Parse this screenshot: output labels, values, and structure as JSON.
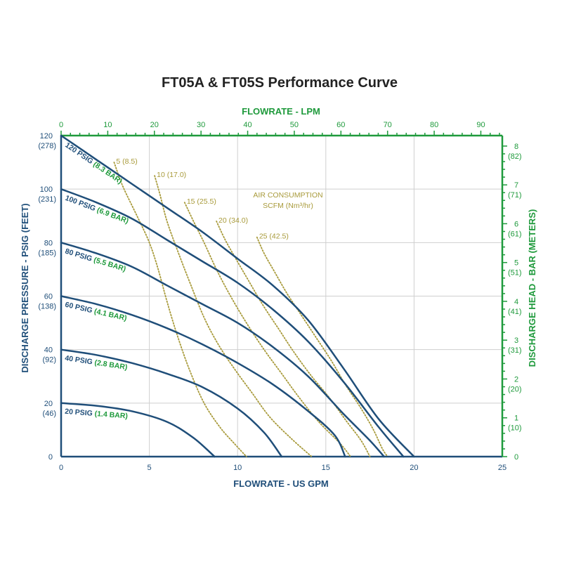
{
  "colors": {
    "navy": "#1f4e79",
    "green": "#1f9a3c",
    "olive": "#a89a3a",
    "grid": "#cfcfcf"
  },
  "chart_data": {
    "type": "line",
    "title": "FT05A & FT05S Performance Curve",
    "xlabel": "FLOWRATE - US GPM",
    "ylabel": "DISCHARGE PRESSURE - PSIG (FEET)",
    "x2label": "FLOWRATE - LPM",
    "y2label": "DISCHARGE HEAD - BAR (METERS)",
    "xlim": [
      0,
      25
    ],
    "ylim": [
      0,
      120
    ],
    "x2lim": [
      0,
      94.6
    ],
    "y2lim": [
      0,
      8.27
    ],
    "grid": true,
    "xticks": [
      "0",
      "5",
      "10",
      "15",
      "20",
      "25"
    ],
    "yticks": [
      {
        "value": 0,
        "label": "0",
        "sub": ""
      },
      {
        "value": 20,
        "label": "20",
        "sub": "(46)"
      },
      {
        "value": 40,
        "label": "40",
        "sub": "(92)"
      },
      {
        "value": 60,
        "label": "60",
        "sub": "(138)"
      },
      {
        "value": 80,
        "label": "80",
        "sub": "(185)"
      },
      {
        "value": 100,
        "label": "100",
        "sub": "(231)"
      },
      {
        "value": 120,
        "label": "120",
        "sub": "(278)"
      }
    ],
    "x2ticks": [
      "0",
      "10",
      "20",
      "30",
      "40",
      "50",
      "60",
      "70",
      "80",
      "90"
    ],
    "y2ticks": [
      {
        "value": 0,
        "label": "0",
        "sub": ""
      },
      {
        "value": 1,
        "label": "1",
        "sub": "(10)"
      },
      {
        "value": 2,
        "label": "2",
        "sub": "(20)"
      },
      {
        "value": 3,
        "label": "3",
        "sub": "(31)"
      },
      {
        "value": 4,
        "label": "4",
        "sub": "(41)"
      },
      {
        "value": 5,
        "label": "5",
        "sub": "(51)"
      },
      {
        "value": 6,
        "label": "6",
        "sub": "(61)"
      },
      {
        "value": 7,
        "label": "7",
        "sub": "(71)"
      },
      {
        "value": 8,
        "label": "8",
        "sub": "(82)"
      }
    ],
    "pressure_curves": [
      {
        "psig": "120 PSIG",
        "bar": "(8.3 BAR)",
        "points": [
          [
            0,
            120
          ],
          [
            2,
            111
          ],
          [
            4,
            102
          ],
          [
            6,
            93
          ],
          [
            8,
            84
          ],
          [
            10,
            74
          ],
          [
            12,
            64
          ],
          [
            14,
            51
          ],
          [
            16,
            33
          ],
          [
            18,
            14
          ],
          [
            20,
            0
          ]
        ]
      },
      {
        "psig": "100 PSIG",
        "bar": "(6.9 BAR)",
        "points": [
          [
            0,
            100
          ],
          [
            2,
            95
          ],
          [
            4,
            89
          ],
          [
            6,
            81
          ],
          [
            8,
            73
          ],
          [
            10,
            65
          ],
          [
            12,
            55
          ],
          [
            14,
            43
          ],
          [
            16,
            28
          ],
          [
            18,
            11
          ],
          [
            19.4,
            0
          ]
        ]
      },
      {
        "psig": "80 PSIG",
        "bar": "(5.5 BAR)",
        "points": [
          [
            0,
            80
          ],
          [
            2,
            76
          ],
          [
            4,
            71
          ],
          [
            6,
            64
          ],
          [
            8,
            57
          ],
          [
            10,
            50
          ],
          [
            12,
            41
          ],
          [
            14,
            30
          ],
          [
            16,
            16
          ],
          [
            17.5,
            6
          ],
          [
            18.3,
            0
          ]
        ]
      },
      {
        "psig": "60 PSIG",
        "bar": "(4.1 BAR)",
        "points": [
          [
            0,
            60
          ],
          [
            2,
            57
          ],
          [
            4,
            53
          ],
          [
            6,
            48
          ],
          [
            8,
            42
          ],
          [
            10,
            35
          ],
          [
            12,
            27
          ],
          [
            14,
            17
          ],
          [
            15.5,
            8
          ],
          [
            16.1,
            0
          ]
        ]
      },
      {
        "psig": "40 PSIG",
        "bar": "(2.8 BAR)",
        "points": [
          [
            0,
            40
          ],
          [
            2,
            38
          ],
          [
            4,
            35
          ],
          [
            6,
            31
          ],
          [
            8,
            26
          ],
          [
            10,
            18
          ],
          [
            11.5,
            9
          ],
          [
            12.5,
            0
          ]
        ]
      },
      {
        "psig": "20 PSIG",
        "bar": "(1.4 BAR)",
        "points": [
          [
            0,
            20
          ],
          [
            2,
            19
          ],
          [
            4,
            17
          ],
          [
            6,
            13
          ],
          [
            7.5,
            7
          ],
          [
            8.7,
            0
          ]
        ]
      }
    ],
    "air_consumption": {
      "label_line1": "AIR CONSUMPTION",
      "label_line2": "SCFM (Nm³/hr)",
      "curves": [
        {
          "label": "5 (8.5)",
          "points": [
            [
              3,
              110
            ],
            [
              3.5,
              101
            ],
            [
              4.3,
              90
            ],
            [
              5,
              80
            ],
            [
              5.5,
              70
            ],
            [
              6,
              58
            ],
            [
              6.6,
              45
            ],
            [
              7.3,
              32
            ],
            [
              8.1,
              20
            ],
            [
              9,
              11
            ],
            [
              9.8,
              5
            ],
            [
              10.5,
              0
            ]
          ]
        },
        {
          "label": "10 (17.0)",
          "points": [
            [
              5.3,
              105
            ],
            [
              5.6,
              98
            ],
            [
              6,
              88
            ],
            [
              6.6,
              77
            ],
            [
              7.3,
              65
            ],
            [
              8.1,
              52
            ],
            [
              8.9,
              42
            ],
            [
              9.8,
              33
            ],
            [
              10.8,
              24
            ],
            [
              11.8,
              15
            ],
            [
              13,
              7
            ],
            [
              14.2,
              0
            ]
          ]
        },
        {
          "label": "15 (25.5)",
          "points": [
            [
              7,
              95
            ],
            [
              7.5,
              88
            ],
            [
              8.1,
              80
            ],
            [
              8.8,
              70
            ],
            [
              9.6,
              60
            ],
            [
              10.5,
              50
            ],
            [
              11.5,
              40
            ],
            [
              12.5,
              31
            ],
            [
              13.5,
              22
            ],
            [
              14.6,
              13
            ],
            [
              15.8,
              5
            ],
            [
              16.4,
              0
            ]
          ]
        },
        {
          "label": "20 (34.0)",
          "points": [
            [
              8.8,
              88
            ],
            [
              9.3,
              81
            ],
            [
              9.9,
              74
            ],
            [
              10.6,
              66
            ],
            [
              11.4,
              57
            ],
            [
              12.3,
              48
            ],
            [
              13.2,
              39
            ],
            [
              14.2,
              30
            ],
            [
              15.2,
              22
            ],
            [
              16.2,
              13
            ],
            [
              17,
              6
            ],
            [
              17.5,
              0
            ]
          ]
        },
        {
          "label": "25 (42.5)",
          "points": [
            [
              11.1,
              82
            ],
            [
              11.5,
              76
            ],
            [
              12.1,
              69
            ],
            [
              12.8,
              61
            ],
            [
              13.6,
              53
            ],
            [
              14.4,
              45
            ],
            [
              15.3,
              36
            ],
            [
              16.1,
              27
            ],
            [
              17,
              18
            ],
            [
              17.7,
              10
            ],
            [
              18.2,
              3
            ],
            [
              18.5,
              0
            ]
          ]
        }
      ]
    }
  }
}
